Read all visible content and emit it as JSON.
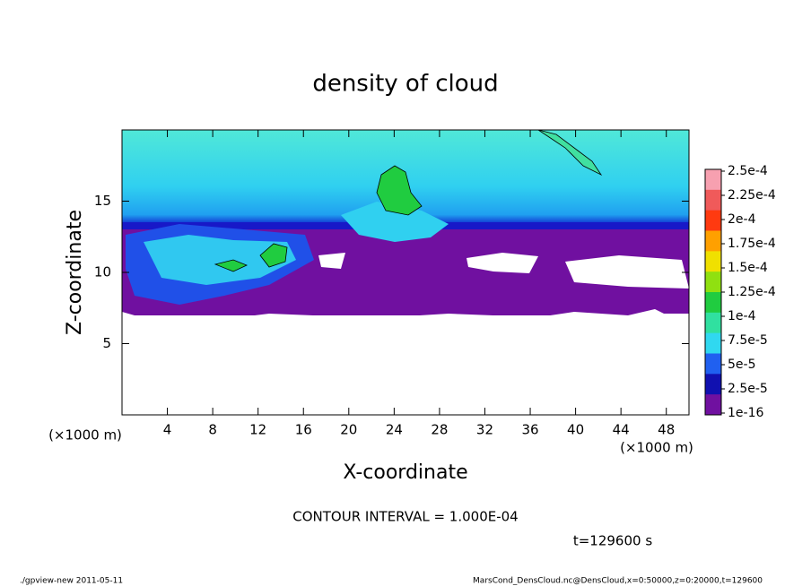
{
  "chart_data": {
    "type": "contour",
    "title": "density of cloud",
    "x_label": "X-coordinate",
    "y_label": "Z-coordinate",
    "x_unit": "(×1000 m)",
    "y_unit": "(×1000 m)",
    "xlim": [
      0,
      50
    ],
    "ylim": [
      0,
      20
    ],
    "xticks": [
      4,
      8,
      12,
      16,
      20,
      24,
      28,
      32,
      36,
      40,
      44,
      48
    ],
    "yticks": [
      5,
      10,
      15
    ],
    "contour_interval_text": "CONTOUR INTERVAL = 1.000E-04",
    "time_text": "t=129600 s",
    "colorbar": {
      "levels": [
        {
          "value": 0.00025,
          "label": "2.5e-4"
        },
        {
          "value": 0.000225,
          "label": "2.25e-4"
        },
        {
          "value": 0.0002,
          "label": "2e-4"
        },
        {
          "value": 0.000175,
          "label": "1.75e-4"
        },
        {
          "value": 0.00015,
          "label": "1.5e-4"
        },
        {
          "value": 0.000125,
          "label": "1.25e-4"
        },
        {
          "value": 0.0001,
          "label": "1e-4"
        },
        {
          "value": 7.5e-05,
          "label": "7.5e-5"
        },
        {
          "value": 5e-05,
          "label": "5e-5"
        },
        {
          "value": 2.5e-05,
          "label": "2.5e-5"
        },
        1e-16
      ],
      "colors": [
        "#f7a0b0",
        "#f05a5a",
        "#ff3a10",
        "#ffa000",
        "#f0e000",
        "#90e010",
        "#20cc40",
        "#30e0a0",
        "#30d8f0",
        "#2060f0",
        "#1010b0",
        "#7010a0"
      ]
    },
    "footer_left": "./gpview-new  2011-05-11",
    "footer_right": "MarsCond_DensCloud.nc@DensCloud,x=0:50000,z=0:20000,t=129600"
  }
}
